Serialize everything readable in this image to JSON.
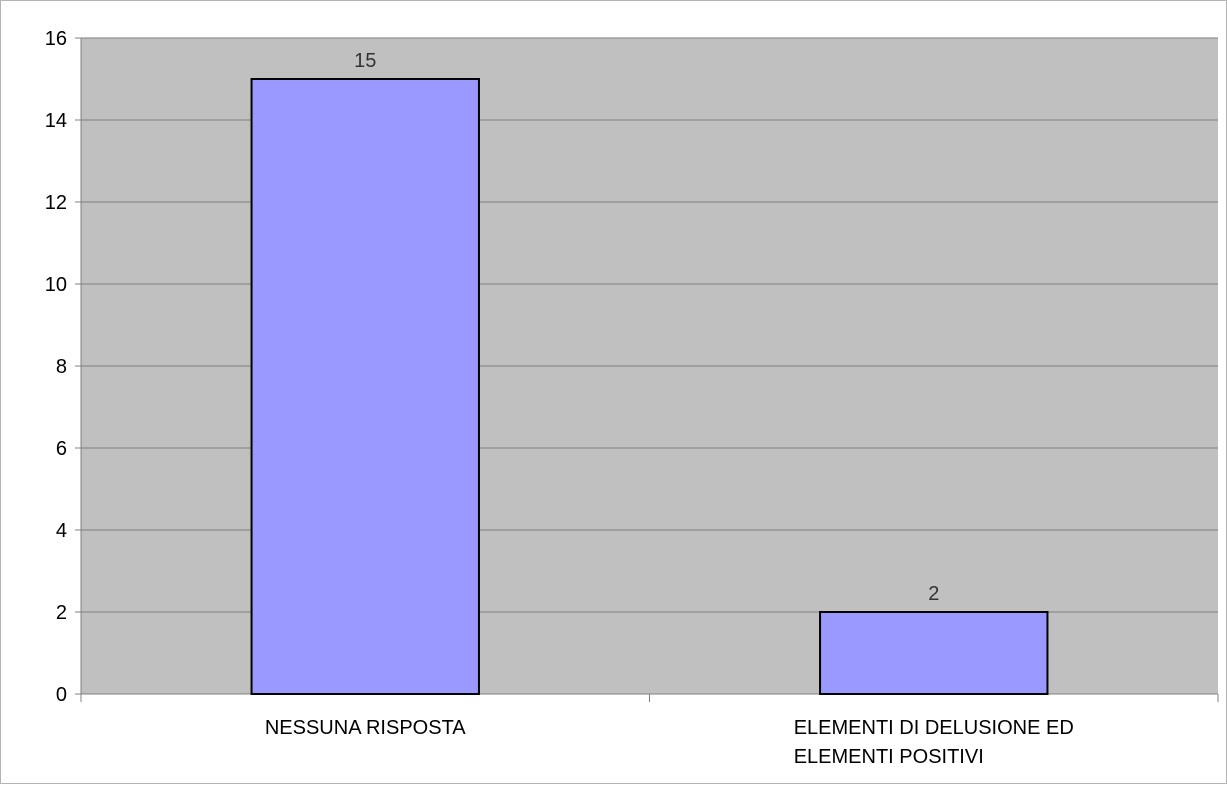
{
  "chart_data": {
    "type": "bar",
    "categories": [
      "NESSUNA RISPOSTA",
      "ELEMENTI DI DELUSIONE ED ELEMENTI POSITIVI"
    ],
    "category_lines": [
      [
        "NESSUNA RISPOSTA"
      ],
      [
        "ELEMENTI DI DELUSIONE ED",
        "ELEMENTI POSITIVI"
      ]
    ],
    "values": [
      15,
      2
    ],
    "data_labels": [
      "15",
      "2"
    ],
    "title": "",
    "xlabel": "",
    "ylabel": "",
    "ylim": [
      0,
      16
    ],
    "yticks": [
      0,
      2,
      4,
      6,
      8,
      10,
      12,
      14,
      16
    ],
    "grid": true,
    "legend": "none",
    "colors": {
      "bar": "#9999ff",
      "bar_outline": "#000000",
      "plot_background": "#c0c0c0",
      "gridline": "#808080",
      "frame": "#b3b3b3"
    }
  }
}
